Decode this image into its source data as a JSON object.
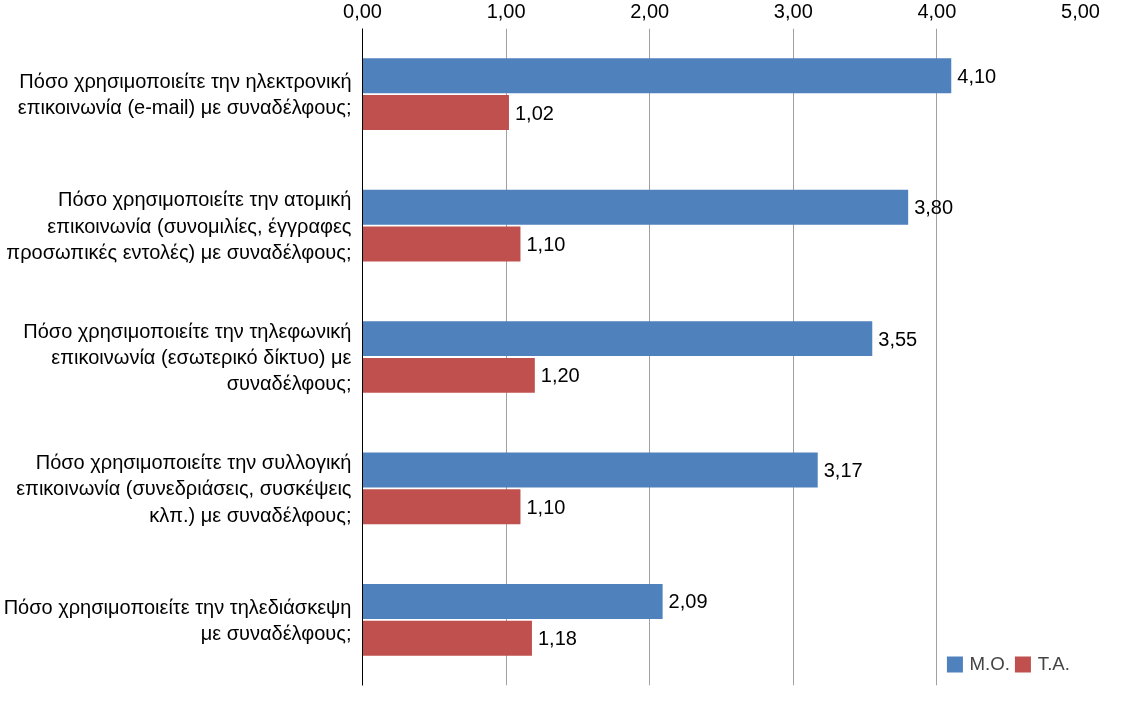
{
  "chart_data": {
    "type": "bar",
    "orientation": "horizontal",
    "categories": [
      "Πόσο χρησιμοποιείτε την ηλεκτρονική\nεπικοινωνία (e-mail) με συναδέλφους;",
      "Πόσο χρησιμοποιείτε την ατομική\nεπικοινωνία (συνομιλίες, έγγραφες\nπροσωπικές εντολές) με συναδέλφους;",
      "Πόσο χρησιμοποιείτε την τηλεφωνική\nεπικοινωνία (εσωτερικό δίκτυο) με\nσυναδέλφους;",
      "Πόσο χρησιμοποιείτε την συλλογική\nεπικοινωνία (συνεδριάσεις, συσκέψεις\nκλπ.) με συναδέλφους;",
      "Πόσο χρησιμοποιείτε την τηλεδιάσκεψη\nμε συναδέλφους;"
    ],
    "series": [
      {
        "name": "Μ.Ο.",
        "color": "#4f81bd",
        "values": [
          4.1,
          3.8,
          3.55,
          3.17,
          2.09
        ],
        "value_labels": [
          "4,10",
          "3,80",
          "3,55",
          "3,17",
          "2,09"
        ]
      },
      {
        "name": "Τ.Α.",
        "color": "#c0504d",
        "values": [
          1.02,
          1.1,
          1.2,
          1.1,
          1.18
        ],
        "value_labels": [
          "1,02",
          "1,10",
          "1,20",
          "1,10",
          "1,18"
        ]
      }
    ],
    "xlim": [
      0,
      5
    ],
    "xticks": [
      {
        "value": 0,
        "label": "0,00"
      },
      {
        "value": 1,
        "label": "1,00"
      },
      {
        "value": 2,
        "label": "2,00"
      },
      {
        "value": 3,
        "label": "3,00"
      },
      {
        "value": 4,
        "label": "4,00"
      },
      {
        "value": 5,
        "label": "5,00"
      }
    ],
    "grid": "x",
    "legend": "bottom right"
  }
}
